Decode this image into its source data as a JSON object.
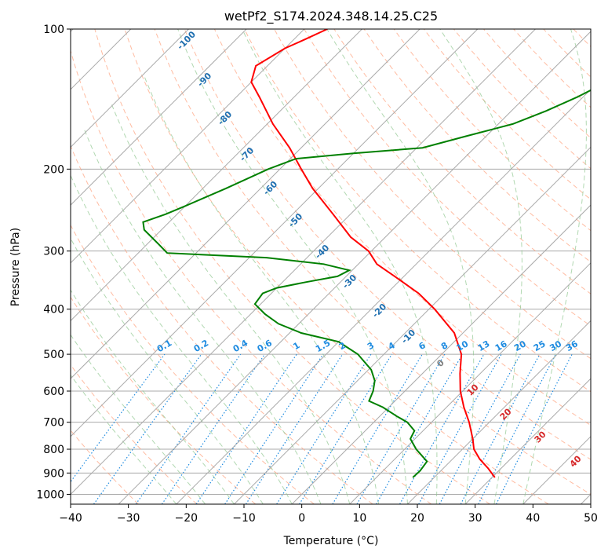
{
  "chart_data": {
    "type": "line",
    "title": "wetPf2_S174.2024.348.14.25.C25",
    "xlabel": "Temperature (°C)",
    "ylabel": "Pressure (hPa)",
    "xlim": [
      -40,
      50
    ],
    "ylim": [
      1050,
      100
    ],
    "y_scale": "log",
    "x_ticks": [
      -40,
      -30,
      -20,
      -10,
      0,
      10,
      20,
      30,
      40,
      50
    ],
    "y_ticks": [
      100,
      200,
      300,
      400,
      500,
      600,
      700,
      800,
      900,
      1000
    ],
    "grid": true,
    "skew_lines": "isotherms skewed 45°",
    "colors": {
      "temperature": "#ff0000",
      "dewpoint": "#008000",
      "dry_adiabats": "#ffa07a",
      "moist_adiabats": "#90c890",
      "mixing_ratio": "#1e8be0",
      "isotherm_labels": "#1f6fb0",
      "grid": "#aaaaaa"
    },
    "series": [
      {
        "name": "Temperature",
        "pressure": [
          920,
          880,
          840,
          800,
          760,
          700,
          650,
          600,
          550,
          500,
          450,
          400,
          370,
          340,
          320,
          300,
          280,
          250,
          220,
          200,
          180,
          160,
          140,
          130,
          120,
          110,
          105,
          100
        ],
        "temperature": [
          30.5,
          27.8,
          24.7,
          22.0,
          20.0,
          16.5,
          13.0,
          9.6,
          6.5,
          3.4,
          -1.5,
          -9.0,
          -14.5,
          -21.6,
          -26.8,
          -30.5,
          -36.0,
          -43.0,
          -51.0,
          -56.3,
          -62.0,
          -69.0,
          -76.0,
          -80.0,
          -82.0,
          -80.0,
          -78.0,
          -76.0
        ]
      },
      {
        "name": "Dewpoint",
        "pressure": [
          920,
          890,
          850,
          800,
          760,
          730,
          700,
          680,
          650,
          630,
          600,
          570,
          540,
          500,
          470,
          450,
          430,
          410,
          390,
          370,
          360,
          350,
          340,
          330,
          320,
          310,
          303,
          290,
          270,
          260,
          250,
          240,
          220,
          200,
          190,
          185,
          180,
          170,
          160,
          150,
          140,
          130,
          120,
          110,
          100
        ],
        "dewpoint": [
          16.3,
          16.4,
          16.0,
          12.0,
          9.2,
          8.5,
          5.8,
          3.0,
          -1.0,
          -4.5,
          -5.5,
          -7.0,
          -9.5,
          -14.5,
          -20.0,
          -28.0,
          -33.5,
          -37.5,
          -41.0,
          -41.5,
          -40.0,
          -36.0,
          -31.5,
          -30.5,
          -36.0,
          -47.0,
          -65.0,
          -68.0,
          -73.0,
          -74.5,
          -72.0,
          -70.0,
          -66.0,
          -62.0,
          -59.0,
          -50.0,
          -39.0,
          -33.5,
          -27.5,
          -24.0,
          -21.0,
          -18.5,
          -16.0,
          -15.0,
          -14.5
        ]
      }
    ],
    "isotherm_labels": [
      "-100",
      "-90",
      "-80",
      "-70",
      "-60",
      "-50",
      "-40",
      "-30",
      "-20",
      "-10",
      "0",
      "10",
      "20",
      "30",
      "40"
    ],
    "mixing_ratio_labels": [
      "0.1",
      "0.2",
      "0.4",
      "0.6",
      "1",
      "1.5",
      "2",
      "3",
      "4",
      "6",
      "8",
      "10",
      "13",
      "16",
      "20",
      "25",
      "30",
      "36"
    ]
  }
}
